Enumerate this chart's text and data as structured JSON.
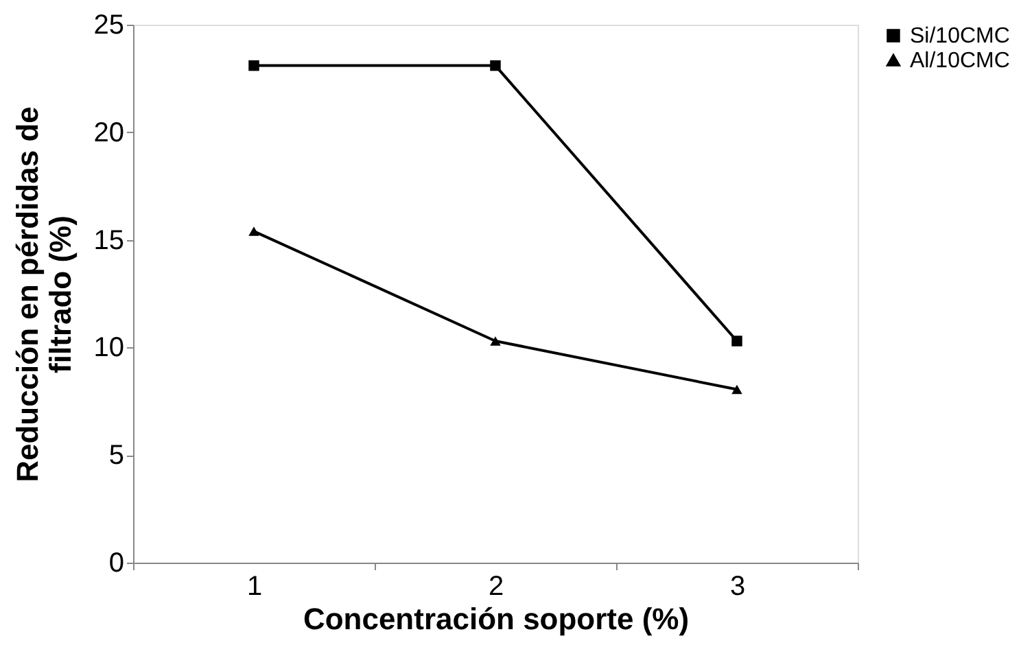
{
  "chart_data": {
    "type": "line",
    "xlabel": "Concentración soporte (%)",
    "ylabel": "Reducción en pérdidas de filtrado (%)",
    "categories": [
      "1",
      "2",
      "3"
    ],
    "series": [
      {
        "name": "Si/10CMC",
        "color": "#000000",
        "marker": "square",
        "values": [
          23.1,
          23.1,
          10.3
        ]
      },
      {
        "name": "Al/10CMC",
        "color": "#000000",
        "marker": "triangle",
        "values": [
          15.4,
          10.3,
          8.05
        ]
      }
    ],
    "ylim": [
      0,
      25
    ],
    "yticks": [
      0,
      5,
      10,
      15,
      20,
      25
    ],
    "grid": false,
    "legend": "right",
    "line_style": "solid"
  }
}
